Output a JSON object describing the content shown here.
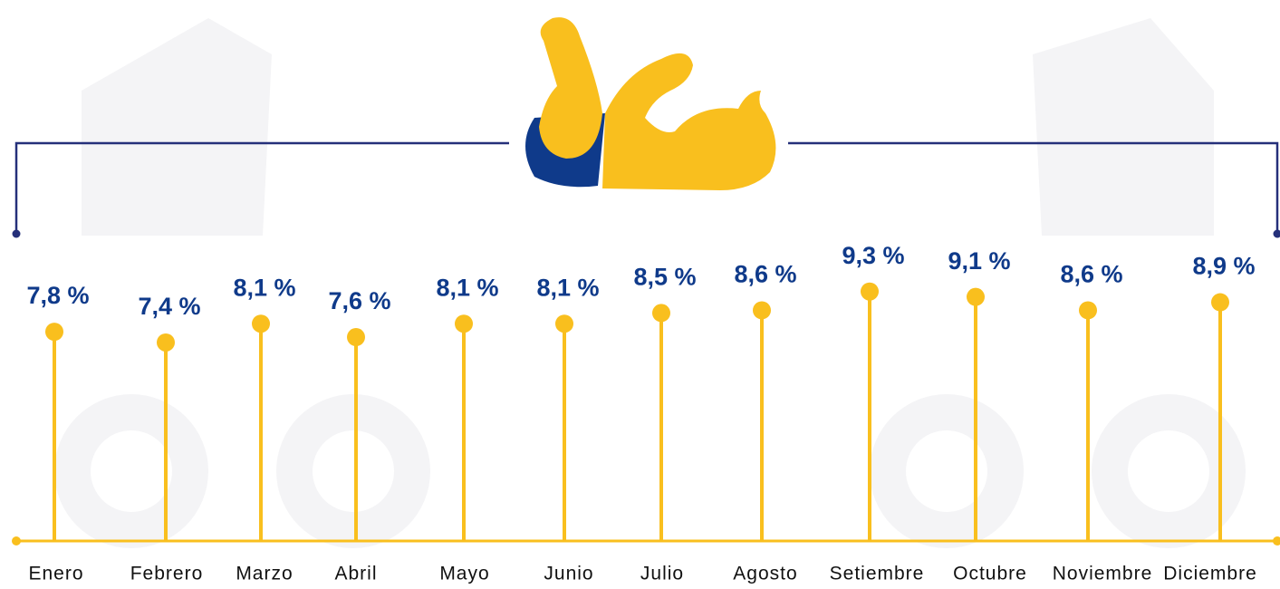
{
  "chart_data": {
    "type": "lollipop",
    "categories": [
      "Enero",
      "Febrero",
      "Marzo",
      "Abril",
      "Mayo",
      "Junio",
      "Julio",
      "Agosto",
      "Setiembre",
      "Octubre",
      "Noviembre",
      "Diciembre"
    ],
    "values": [
      7.8,
      7.4,
      8.1,
      7.6,
      8.1,
      8.1,
      8.5,
      8.6,
      9.3,
      9.1,
      8.6,
      8.9
    ],
    "value_labels": [
      "7,8 %",
      "7,4 %",
      "8,1 %",
      "7,6 %",
      "8,1 %",
      "8,1 %",
      "8,5 %",
      "8,6 %",
      "9,3 %",
      "9,1 %",
      "8,6 %",
      "8,9 %"
    ],
    "color": "#f9bf1e"
  }
}
